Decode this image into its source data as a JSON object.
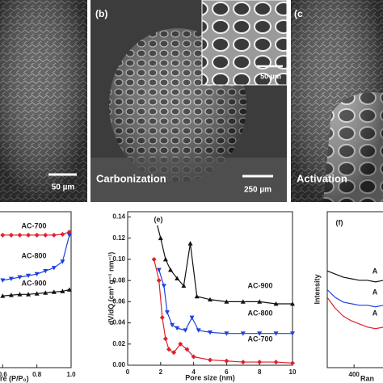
{
  "panels": {
    "a": {
      "scale": "50 µm"
    },
    "b": {
      "label": "(b)",
      "caption": "Carbonization",
      "scale": "250 µm",
      "inset_scale": "50 µm"
    },
    "c": {
      "label": "(c",
      "caption": "Activation"
    }
  },
  "chart_data": [
    {
      "type": "line",
      "xlabel": "re (P/P₀)",
      "xlim": [
        0.575,
        1.0
      ],
      "xticks": [
        0.6,
        0.8,
        {
          "value": 1.0,
          "label": "1.0"
        }
      ],
      "ylim": [
        0,
        1
      ],
      "series": [
        {
          "name": "AC-700",
          "color": "#e0202a",
          "marker": "diamond",
          "x": [
            0.6,
            0.65,
            0.7,
            0.75,
            0.8,
            0.85,
            0.9,
            0.95,
            0.99
          ],
          "values": [
            0.85,
            0.85,
            0.85,
            0.85,
            0.85,
            0.85,
            0.85,
            0.855,
            0.87
          ]
        },
        {
          "name": "AC-800",
          "color": "#2040e0",
          "marker": "triangle-down",
          "x": [
            0.6,
            0.65,
            0.7,
            0.75,
            0.8,
            0.85,
            0.9,
            0.95,
            0.99
          ],
          "values": [
            0.56,
            0.57,
            0.58,
            0.59,
            0.6,
            0.62,
            0.64,
            0.68,
            0.85
          ]
        },
        {
          "name": "AC-900",
          "color": "#111111",
          "marker": "triangle",
          "x": [
            0.6,
            0.65,
            0.7,
            0.75,
            0.8,
            0.85,
            0.9,
            0.95,
            0.99
          ],
          "values": [
            0.46,
            0.465,
            0.47,
            0.47,
            0.475,
            0.48,
            0.485,
            0.49,
            0.5
          ]
        }
      ]
    },
    {
      "type": "line",
      "label": "(e)",
      "xlabel": "Pore size (nm)",
      "ylabel": "dV/dQ (cm³ g⁻¹ nm⁻¹)",
      "xlim": [
        0,
        10
      ],
      "xticks": [
        0,
        2,
        4,
        6,
        8,
        10
      ],
      "ylim": [
        0,
        0.145
      ],
      "yticks": [
        {
          "value": 0,
          "label": "0.00"
        },
        0.02,
        0.04,
        0.06,
        0.08,
        {
          "value": 0.1,
          "label": "0.10"
        },
        0.12,
        0.14
      ],
      "series": [
        {
          "name": "AC-900",
          "color": "#111111",
          "marker": "triangle",
          "x": [
            1.7,
            2.0,
            2.3,
            2.6,
            3.0,
            3.4,
            3.8,
            4.2,
            5,
            6,
            7,
            8,
            9,
            10
          ],
          "values": [
            0.138,
            0.12,
            0.1,
            0.09,
            0.082,
            0.075,
            0.115,
            0.065,
            0.062,
            0.06,
            0.06,
            0.06,
            0.058,
            0.058
          ]
        },
        {
          "name": "AC-800",
          "color": "#2040e0",
          "marker": "triangle-down",
          "x": [
            1.9,
            2.2,
            2.4,
            2.7,
            3.0,
            3.5,
            3.9,
            4.3,
            5,
            6,
            7,
            8,
            9,
            10
          ],
          "values": [
            0.09,
            0.075,
            0.05,
            0.038,
            0.035,
            0.033,
            0.045,
            0.033,
            0.031,
            0.03,
            0.03,
            0.03,
            0.03,
            0.03
          ]
        },
        {
          "name": "AC-700",
          "color": "#e0202a",
          "marker": "diamond",
          "x": [
            1.6,
            1.9,
            2.1,
            2.3,
            2.5,
            2.8,
            3.2,
            3.6,
            4,
            5,
            6,
            7,
            8,
            9,
            10
          ],
          "values": [
            0.1,
            0.08,
            0.045,
            0.025,
            0.015,
            0.012,
            0.02,
            0.015,
            0.008,
            0.005,
            0.004,
            0.003,
            0.003,
            0.003,
            0.002
          ]
        }
      ]
    },
    {
      "type": "line",
      "label": "(f)",
      "xlabel": "Ran",
      "ylabel": "Intensity",
      "xlim": [
        350,
        460
      ],
      "xticks": [
        400
      ],
      "ylim": [
        0,
        1
      ],
      "series": [
        {
          "name": "A",
          "color": "#111111",
          "x": [
            350,
            365,
            380,
            395,
            410,
            425,
            440,
            455,
            460
          ],
          "values": [
            0.62,
            0.6,
            0.58,
            0.57,
            0.56,
            0.56,
            0.55,
            0.56,
            0.57
          ]
        },
        {
          "name": "A",
          "color": "#2040e0",
          "x": [
            350,
            365,
            380,
            395,
            410,
            425,
            440,
            455,
            460
          ],
          "values": [
            0.5,
            0.45,
            0.42,
            0.41,
            0.4,
            0.4,
            0.39,
            0.4,
            0.41
          ]
        },
        {
          "name": "A",
          "color": "#e0202a",
          "x": [
            350,
            365,
            380,
            395,
            410,
            425,
            440,
            455,
            460
          ],
          "values": [
            0.45,
            0.38,
            0.33,
            0.3,
            0.28,
            0.26,
            0.25,
            0.26,
            0.27
          ]
        }
      ]
    }
  ]
}
